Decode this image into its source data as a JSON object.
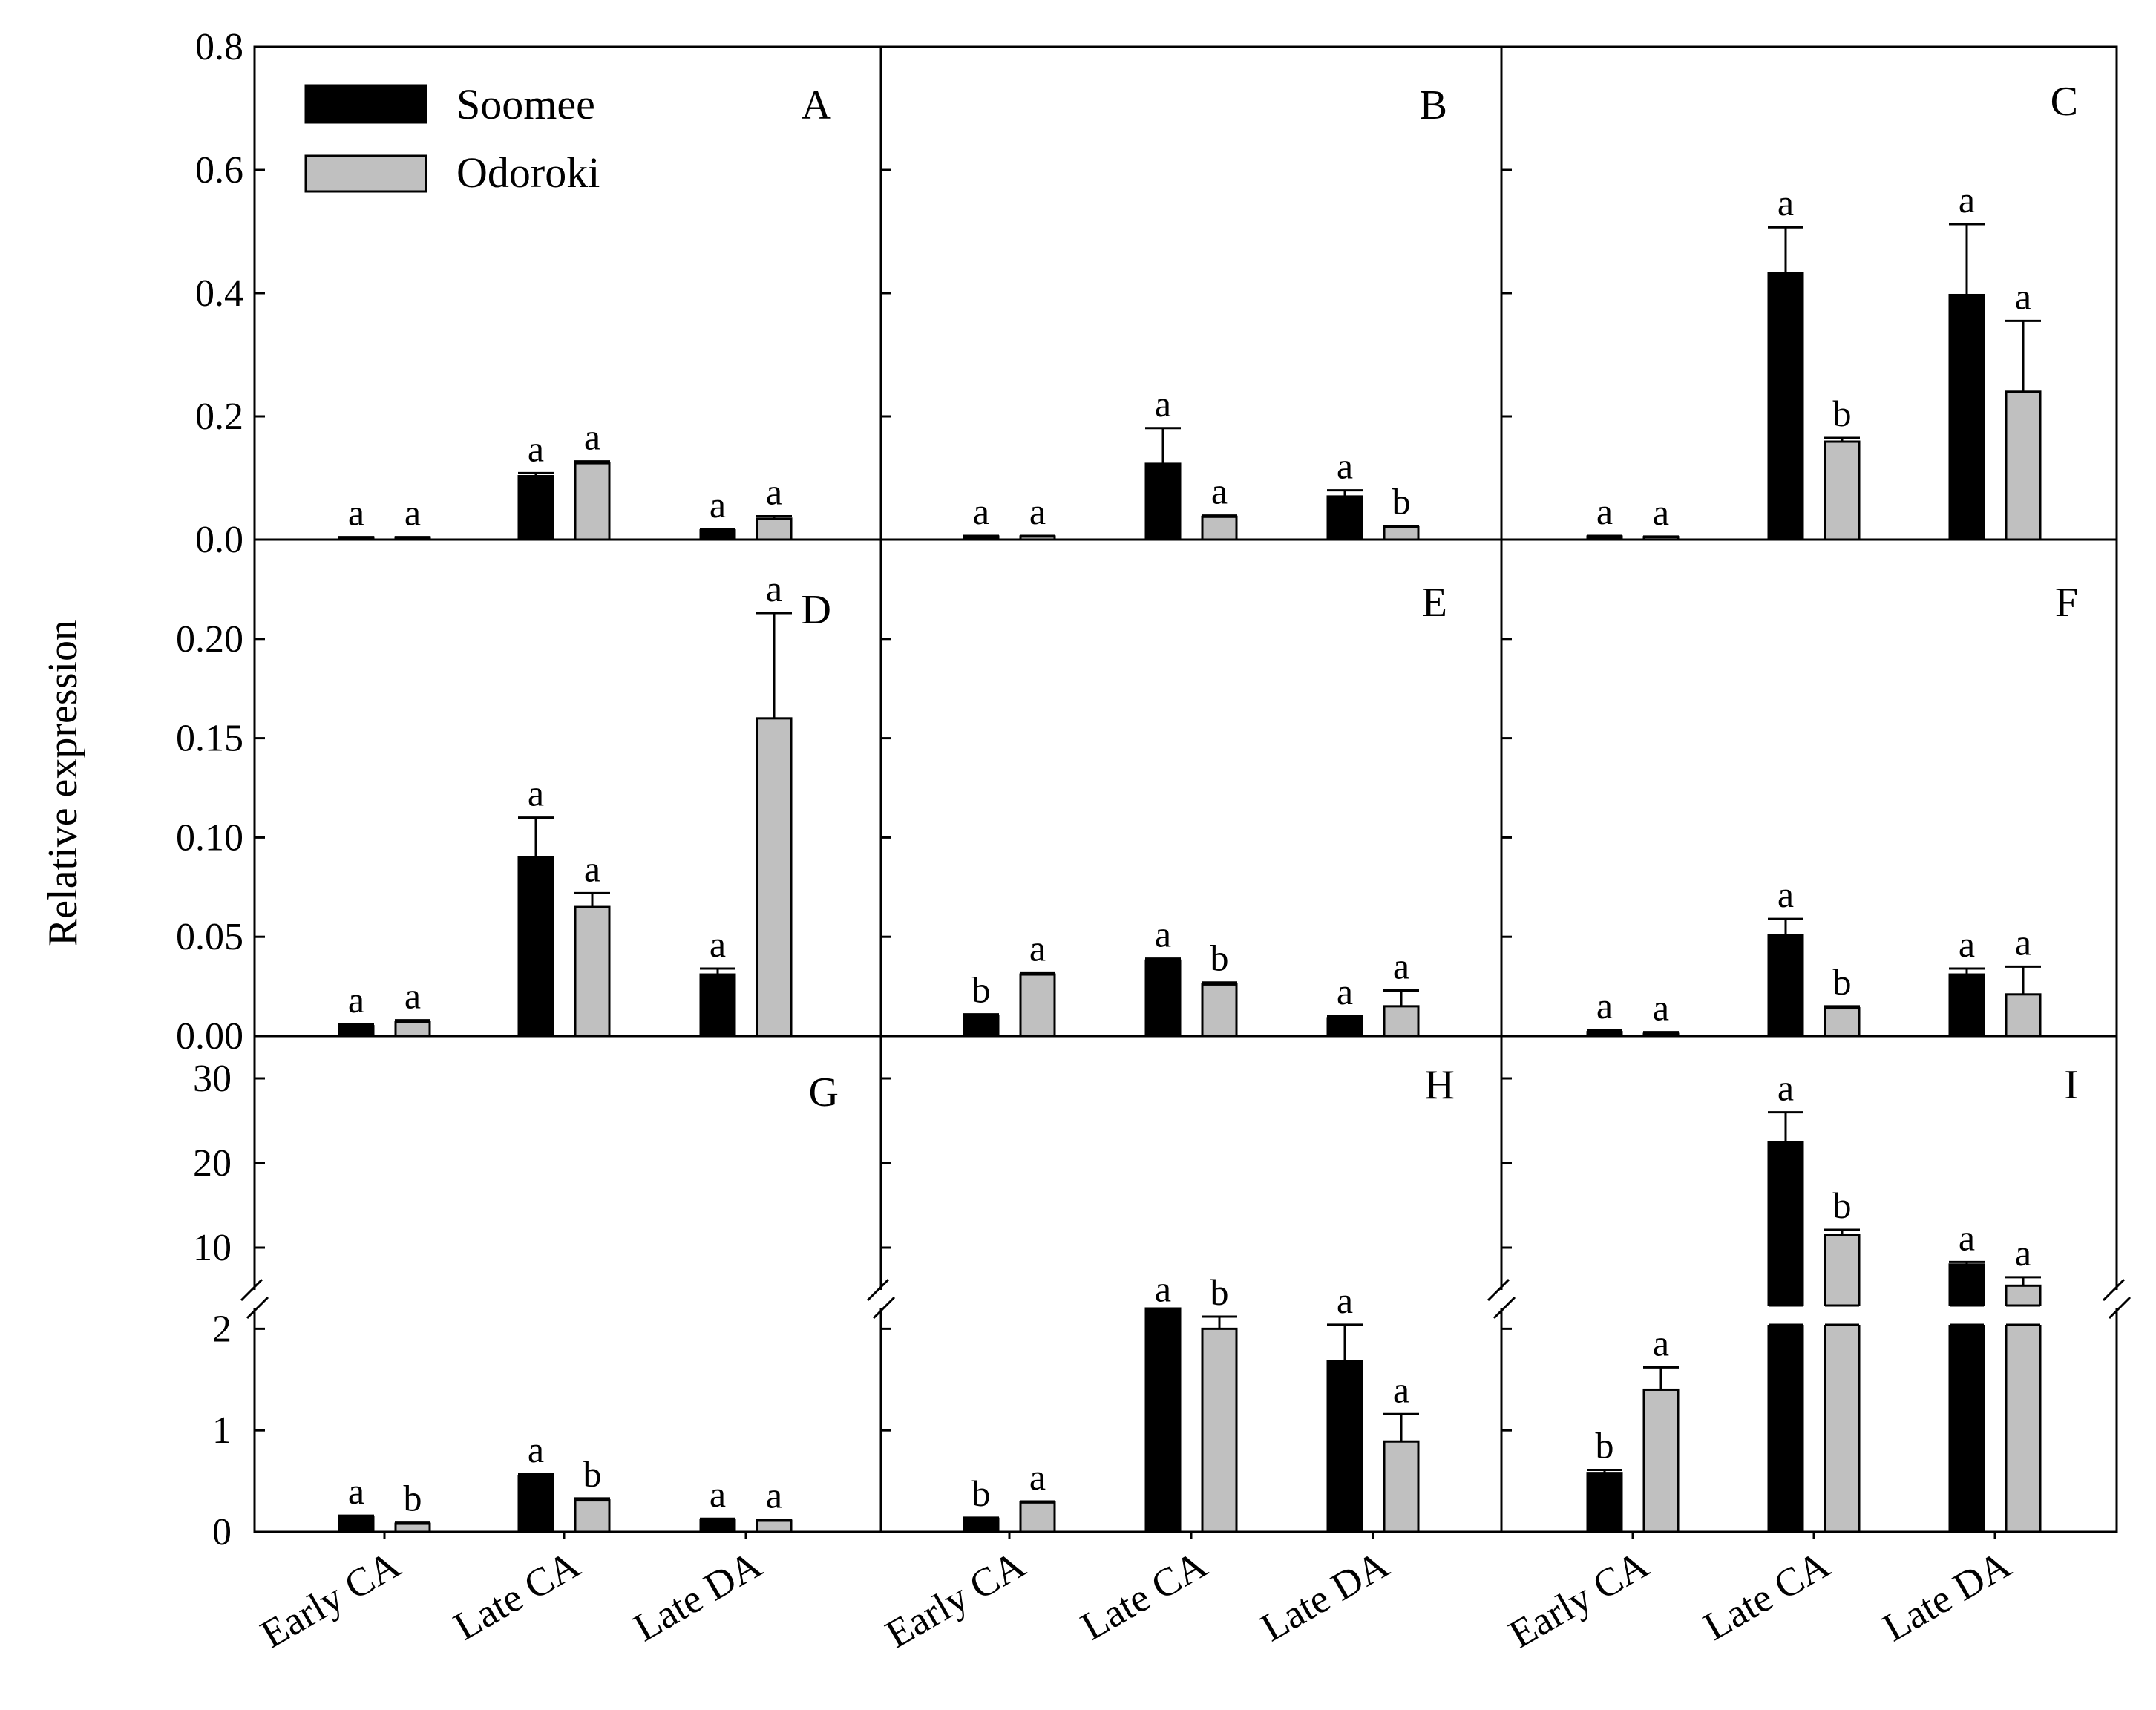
{
  "colors": {
    "soomee": "#000000",
    "odoroki": "#c0c0c0",
    "frame": "#000000"
  },
  "legend": {
    "items": [
      "Soomee",
      "Odoroki"
    ]
  },
  "ylabel": "Relative expression",
  "categories": [
    "Early CA",
    "Late CA",
    "Late DA"
  ],
  "rows": [
    {
      "ticks": [
        "0.0",
        "0.2",
        "0.4",
        "0.6",
        "0.8"
      ]
    },
    {
      "ticks": [
        "0.00",
        "0.05",
        "0.10",
        "0.15",
        "0.20"
      ]
    },
    {
      "ticks_lower": [
        "0",
        "1",
        "2"
      ],
      "ticks_upper": [
        "10",
        "20",
        "30"
      ]
    }
  ],
  "chart_data": [
    {
      "panel": "A",
      "type": "bar",
      "ylim": [
        0,
        0.8
      ],
      "categories": [
        "Early CA",
        "Late CA",
        "Late DA"
      ],
      "series": [
        {
          "name": "Soomee",
          "values": [
            0.003,
            0.103,
            0.015
          ],
          "errors": [
            0.001,
            0.005,
            0.002
          ],
          "letters": [
            "a",
            "a",
            "a"
          ]
        },
        {
          "name": "Odoroki",
          "values": [
            0.003,
            0.124,
            0.034
          ],
          "errors": [
            0.001,
            0.003,
            0.004
          ],
          "letters": [
            "a",
            "a",
            "a"
          ]
        }
      ]
    },
    {
      "panel": "B",
      "type": "bar",
      "ylim": [
        0,
        0.8
      ],
      "categories": [
        "Early CA",
        "Late CA",
        "Late DA"
      ],
      "series": [
        {
          "name": "Soomee",
          "values": [
            0.005,
            0.123,
            0.07
          ],
          "errors": [
            0.001,
            0.058,
            0.01
          ],
          "letters": [
            "a",
            "a",
            "a"
          ]
        },
        {
          "name": "Odoroki",
          "values": [
            0.005,
            0.037,
            0.02
          ],
          "errors": [
            0.001,
            0.002,
            0.002
          ],
          "letters": [
            "a",
            "a",
            "b"
          ]
        }
      ]
    },
    {
      "panel": "C",
      "type": "bar",
      "ylim": [
        0,
        0.8
      ],
      "categories": [
        "Early CA",
        "Late CA",
        "Late DA"
      ],
      "series": [
        {
          "name": "Soomee",
          "values": [
            0.005,
            0.432,
            0.397
          ],
          "errors": [
            0.001,
            0.075,
            0.115
          ],
          "letters": [
            "a",
            "a",
            "a"
          ]
        },
        {
          "name": "Odoroki",
          "values": [
            0.004,
            0.159,
            0.24
          ],
          "errors": [
            0.001,
            0.006,
            0.115
          ],
          "letters": [
            "a",
            "b",
            "a"
          ]
        }
      ]
    },
    {
      "panel": "D",
      "type": "bar",
      "ylim": [
        0,
        0.25
      ],
      "categories": [
        "Early CA",
        "Late CA",
        "Late DA"
      ],
      "series": [
        {
          "name": "Soomee",
          "values": [
            0.005,
            0.09,
            0.031
          ],
          "errors": [
            0.001,
            0.02,
            0.003
          ],
          "letters": [
            "a",
            "a",
            "a"
          ]
        },
        {
          "name": "Odoroki",
          "values": [
            0.007,
            0.065,
            0.16
          ],
          "errors": [
            0.001,
            0.007,
            0.053
          ],
          "letters": [
            "a",
            "a",
            "a"
          ]
        }
      ]
    },
    {
      "panel": "E",
      "type": "bar",
      "ylim": [
        0,
        0.25
      ],
      "categories": [
        "Early CA",
        "Late CA",
        "Late DA"
      ],
      "series": [
        {
          "name": "Soomee",
          "values": [
            0.01,
            0.038,
            0.009
          ],
          "errors": [
            0.001,
            0.001,
            0.001
          ],
          "letters": [
            "b",
            "a",
            "a"
          ]
        },
        {
          "name": "Odoroki",
          "values": [
            0.031,
            0.026,
            0.015
          ],
          "errors": [
            0.001,
            0.001,
            0.008
          ],
          "letters": [
            "a",
            "b",
            "a"
          ]
        }
      ]
    },
    {
      "panel": "F",
      "type": "bar",
      "ylim": [
        0,
        0.25
      ],
      "categories": [
        "Early CA",
        "Late CA",
        "Late DA"
      ],
      "series": [
        {
          "name": "Soomee",
          "values": [
            0.002,
            0.051,
            0.031
          ],
          "errors": [
            0.001,
            0.008,
            0.003
          ],
          "letters": [
            "a",
            "a",
            "a"
          ]
        },
        {
          "name": "Odoroki",
          "values": [
            0.001,
            0.014,
            0.021
          ],
          "errors": [
            0.001,
            0.001,
            0.014
          ],
          "letters": [
            "a",
            "b",
            "a"
          ]
        }
      ]
    },
    {
      "panel": "G",
      "type": "bar",
      "broken_axis": {
        "lower": [
          0,
          2.2
        ],
        "upper": [
          5,
          35
        ]
      },
      "categories": [
        "Early CA",
        "Late CA",
        "Late DA"
      ],
      "series": [
        {
          "name": "Soomee",
          "values": [
            0.15,
            0.55,
            0.12
          ],
          "errors": [
            0.01,
            0.02,
            0.01
          ],
          "letters": [
            "a",
            "a",
            "a"
          ]
        },
        {
          "name": "Odoroki",
          "values": [
            0.08,
            0.31,
            0.11
          ],
          "errors": [
            0.01,
            0.02,
            0.01
          ],
          "letters": [
            "b",
            "b",
            "a"
          ]
        }
      ]
    },
    {
      "panel": "H",
      "type": "bar",
      "broken_axis": {
        "lower": [
          0,
          2.2
        ],
        "upper": [
          5,
          35
        ]
      },
      "categories": [
        "Early CA",
        "Late CA",
        "Late DA"
      ],
      "series": [
        {
          "name": "Soomee",
          "values": [
            0.13,
            2.2,
            1.68
          ],
          "errors": [
            0.01,
            0.05,
            0.36
          ],
          "letters": [
            "b",
            "a",
            "a"
          ]
        },
        {
          "name": "Odoroki",
          "values": [
            0.29,
            2.0,
            0.89
          ],
          "errors": [
            0.01,
            0.12,
            0.27
          ],
          "letters": [
            "a",
            "b",
            "a"
          ]
        }
      ]
    },
    {
      "panel": "I",
      "type": "bar",
      "broken_axis": {
        "lower": [
          0,
          2.2
        ],
        "upper": [
          5,
          35
        ]
      },
      "categories": [
        "Early CA",
        "Late CA",
        "Late DA"
      ],
      "series": [
        {
          "name": "Soomee",
          "values": [
            0.58,
            22.5,
            8.0
          ],
          "errors": [
            0.03,
            3.5,
            0.3
          ],
          "letters": [
            "b",
            "a",
            "a"
          ]
        },
        {
          "name": "Odoroki",
          "values": [
            1.4,
            11.5,
            5.5
          ],
          "errors": [
            0.22,
            0.6,
            1.0
          ],
          "letters": [
            "a",
            "b",
            "a"
          ]
        }
      ]
    }
  ]
}
